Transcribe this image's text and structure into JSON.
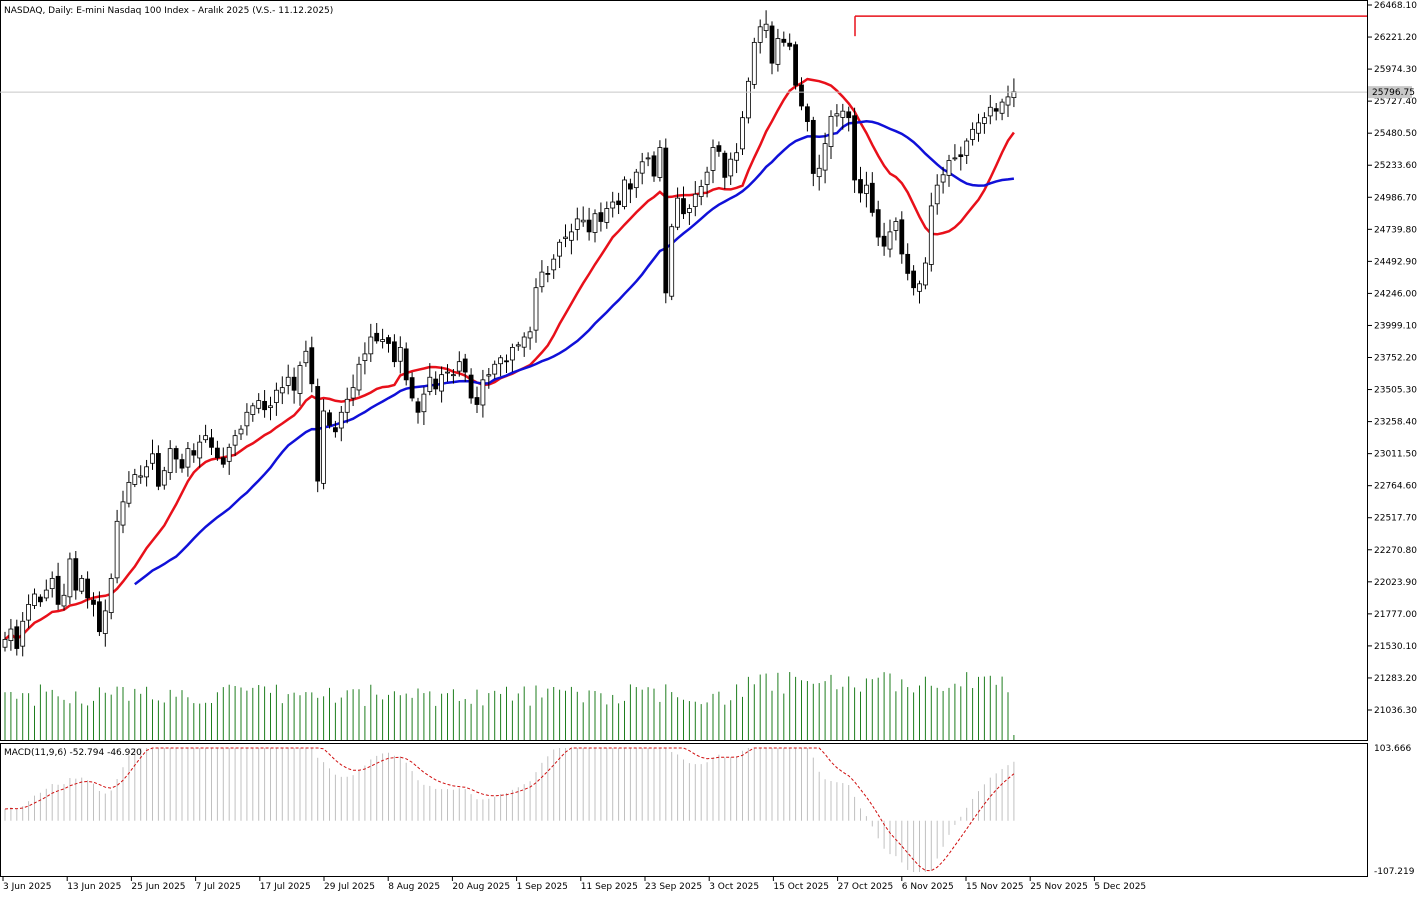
{
  "header": {
    "title": "NASDAQ, Daily:  E-mini Nasdaq 100 Index - Aralık 2025 (V.S.- 11.12.2025)"
  },
  "macd_panel": {
    "label": "MACD(11,9,6) -52.794 -46.920",
    "top_value": "103.666",
    "bottom_value": "-107.219"
  },
  "colors": {
    "up": "#ffffff",
    "down": "#000000",
    "ma_fast": "#e8101a",
    "ma_slow": "#1010d8",
    "volume": "#1e7d1e",
    "macd_hist": "#c0c0c0",
    "macd_signal": "#d01010",
    "resistance": "#e8101a",
    "price_line": "#c8c8c8"
  },
  "chart_data": {
    "type": "candlestick",
    "title": "NASDAQ, Daily:  E-mini Nasdaq 100 Index - Aralık 2025 (V.S.- 11.12.2025)",
    "y_ticks": [
      "26468.10",
      "26221.20",
      "25974.30",
      "25727.40",
      "25480.50",
      "25233.60",
      "24986.70",
      "24739.80",
      "24492.90",
      "24246.00",
      "23999.10",
      "23752.20",
      "23505.30",
      "23258.40",
      "23011.50",
      "22764.60",
      "22517.70",
      "22270.80",
      "22023.90",
      "21777.00",
      "21530.10",
      "21283.20",
      "21036.30"
    ],
    "ylim": [
      20930,
      26500
    ],
    "x_labels": [
      "3 Jun 2025",
      "13 Jun 2025",
      "25 Jun 2025",
      "7 Jul 2025",
      "17 Jul 2025",
      "29 Jul 2025",
      "8 Aug 2025",
      "20 Aug 2025",
      "1 Sep 2025",
      "11 Sep 2025",
      "23 Sep 2025",
      "3 Oct 2025",
      "15 Oct 2025",
      "27 Oct 2025",
      "6 Nov 2025",
      "15 Nov 2025",
      "25 Nov 2025",
      "5 Dec 2025"
    ],
    "current_price": "25796.75",
    "resistance_level": 26382,
    "candles_close": [
      21580,
      21660,
      21510,
      21720,
      21850,
      21930,
      21870,
      21960,
      22050,
      21850,
      21920,
      22200,
      21960,
      22050,
      21900,
      21850,
      21640,
      21800,
      22050,
      22490,
      22640,
      22790,
      22850,
      22840,
      22910,
      23010,
      22760,
      22880,
      23050,
      22970,
      22900,
      23050,
      23000,
      23100,
      23150,
      23060,
      22980,
      22930,
      23060,
      23150,
      23200,
      23330,
      23380,
      23420,
      23350,
      23380,
      23500,
      23520,
      23600,
      23500,
      23690,
      23800,
      23550,
      22800,
      23340,
      23230,
      23180,
      23330,
      23430,
      23520,
      23700,
      23780,
      23910,
      23880,
      23890,
      23860,
      23720,
      23830,
      23580,
      23440,
      23330,
      23470,
      23600,
      23510,
      23620,
      23640,
      23620,
      23720,
      23640,
      23440,
      23390,
      23580,
      23620,
      23700,
      23750,
      23720,
      23830,
      23850,
      23910,
      23950,
      24290,
      24410,
      24400,
      24510,
      24640,
      24680,
      24720,
      24820,
      24810,
      24720,
      24860,
      24800,
      24900,
      24950,
      24930,
      25120,
      25050,
      25180,
      25260,
      25290,
      25150,
      25370,
      24250,
      24760,
      24980,
      24860,
      24900,
      25010,
      25070,
      25180,
      25370,
      25340,
      25140,
      25280,
      25330,
      25600,
      25880,
      26180,
      26300,
      26320,
      26020,
      26210,
      26180,
      26150,
      25850,
      25690,
      25570,
      25170,
      25210,
      25400,
      25610,
      25630,
      25650,
      25600,
      25120,
      25020,
      25080,
      24870,
      24680,
      24610,
      24720,
      24800,
      24550,
      24400,
      24290,
      24320,
      24480,
      24920,
      25080,
      25160,
      25270,
      25290,
      25300,
      25420,
      25510,
      25560,
      25600,
      25680,
      25650,
      25720,
      25760,
      25800
    ]
  }
}
